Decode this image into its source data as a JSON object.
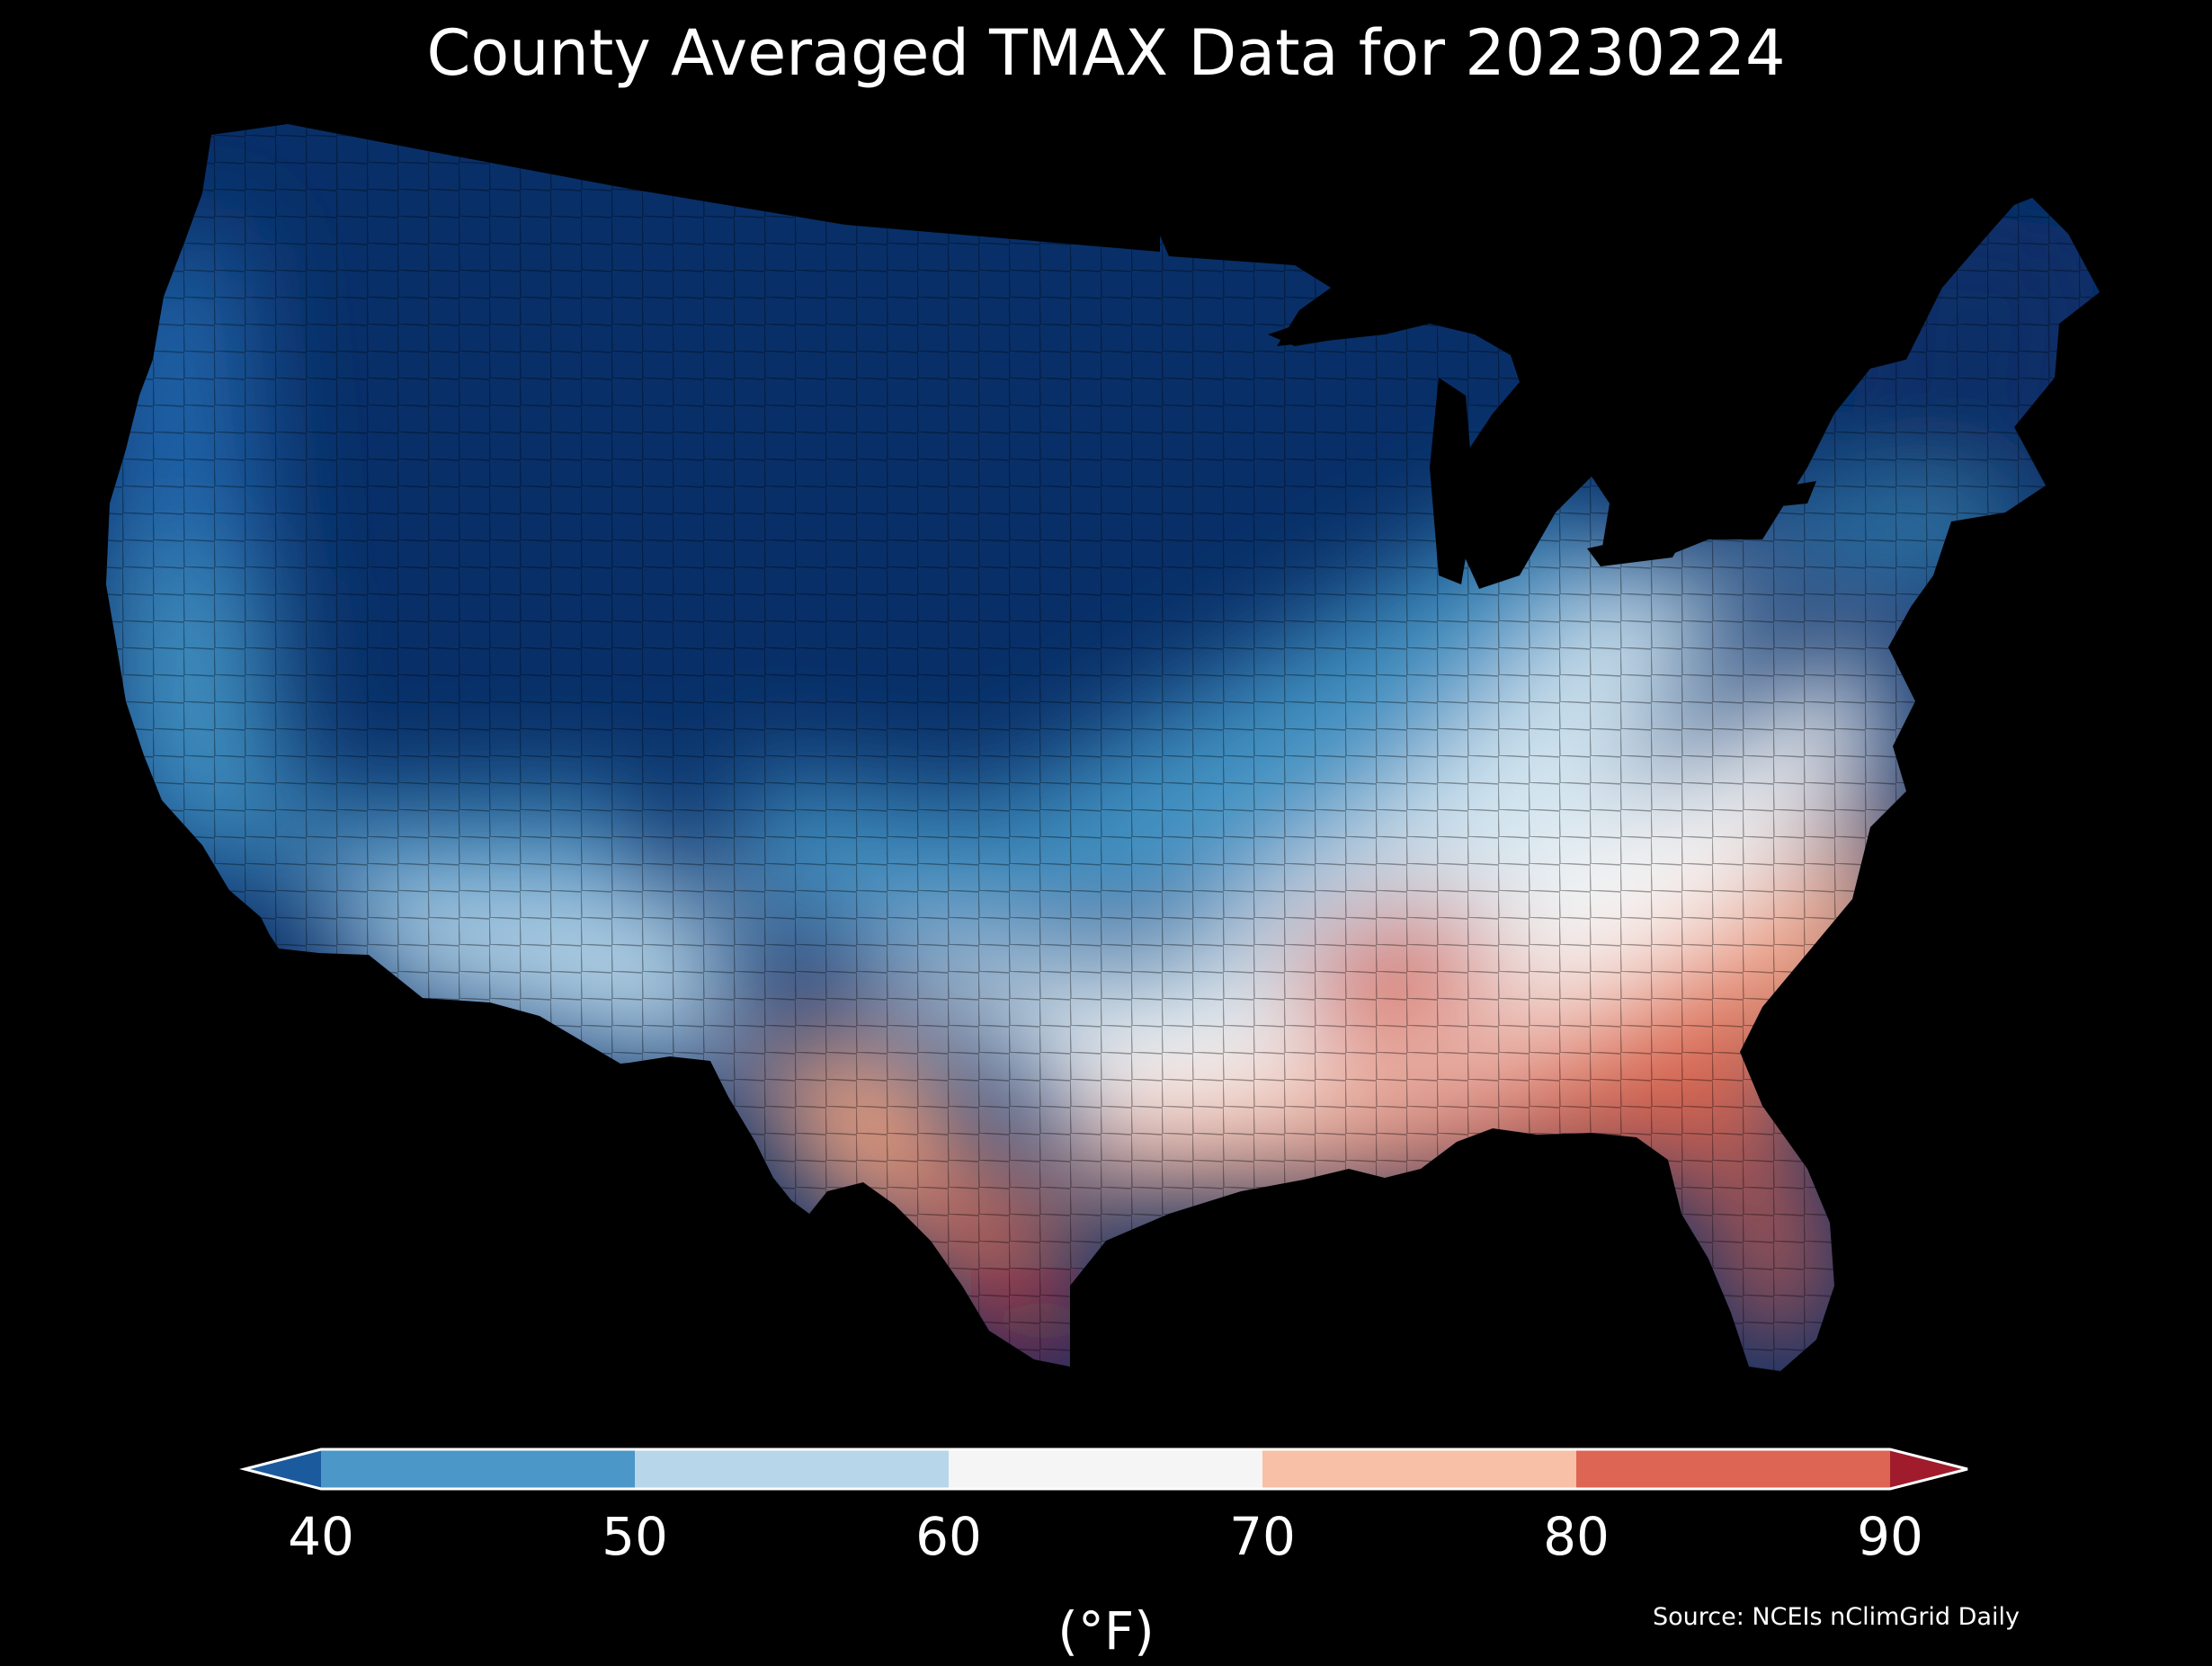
{
  "title": "County Averaged TMAX Data for 20230224",
  "colorbar": {
    "ticks": [
      "40",
      "50",
      "60",
      "70",
      "80",
      "90"
    ],
    "unit_label": "(°F)",
    "colors": {
      "under": "#1b5a9c",
      "bins": [
        "#4a97c8",
        "#b7d6e9",
        "#f5f5f5",
        "#f8c0a6",
        "#dd6553"
      ],
      "over": "#a01c2c"
    }
  },
  "source": "Source: NCEIs nClimGrid Daily",
  "map": {
    "region": "contiguous-united-states",
    "variable": "TMAX",
    "date": "20230224",
    "regional_values_f": {
      "northern_plains_rockies_midwest": 20,
      "pacific_northwest_coast": 42,
      "northeast": 38,
      "california_coast": 52,
      "desert_southwest": 60,
      "ohio_valley_midatlantic": 66,
      "southeast": 78,
      "florida": 83,
      "south_texas": 90
    }
  }
}
